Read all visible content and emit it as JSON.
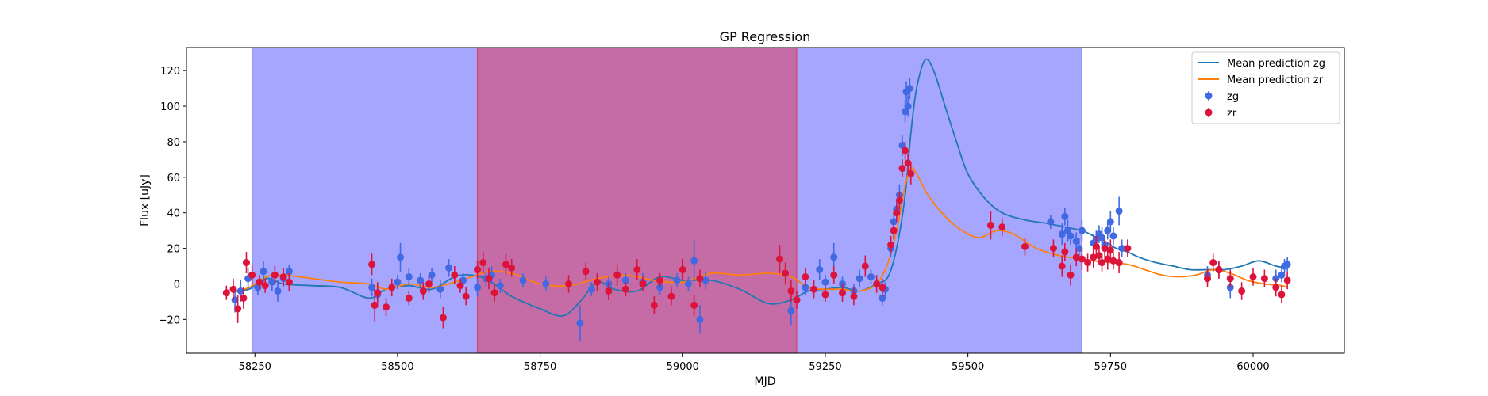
{
  "chart_data": {
    "type": "scatter",
    "title": "GP Regression",
    "xlabel": "MJD",
    "ylabel": "Flux [uJy]",
    "xlim": [
      58130,
      60160
    ],
    "ylim": [
      -39,
      133
    ],
    "xticks": [
      58250,
      58500,
      58750,
      59000,
      59250,
      59500,
      59750,
      60000
    ],
    "yticks": [
      -20,
      0,
      20,
      40,
      60,
      80,
      100,
      120
    ],
    "grid": false,
    "legend_position": "top-right",
    "shaded_regions": [
      {
        "x": [
          58245,
          59700
        ],
        "color": "#0000ff",
        "opacity": 0.35
      },
      {
        "x": [
          58640,
          59200
        ],
        "color": "#ff0000",
        "opacity": 0.35
      }
    ],
    "lines": [
      {
        "name": "Mean prediction zg",
        "color": "#1f77b4",
        "x": [
          58210,
          58240,
          58270,
          58300,
          58350,
          58400,
          58450,
          58480,
          58520,
          58560,
          58600,
          58630,
          58660,
          58700,
          58750,
          58790,
          58820,
          58850,
          58880,
          58920,
          58960,
          59000,
          59050,
          59100,
          59150,
          59190,
          59220,
          59250,
          59280,
          59310,
          59340,
          59360,
          59375,
          59390,
          59400,
          59410,
          59425,
          59440,
          59460,
          59480,
          59500,
          59530,
          59560,
          59600,
          59640,
          59670,
          59700,
          59720,
          59740,
          59760,
          59780,
          59800,
          59830,
          59860,
          59890,
          59920,
          59950,
          59980,
          60010,
          60040,
          60060
        ],
        "y": [
          -4,
          -3,
          3,
          0,
          -1,
          -2,
          -8,
          -3,
          -1,
          -3,
          4,
          5,
          2,
          -7,
          -14,
          -18,
          -10,
          1,
          -3,
          -4,
          4,
          2,
          2,
          -3,
          -11,
          -9,
          -4,
          -3,
          -2,
          -4,
          0,
          4,
          20,
          50,
          85,
          110,
          126,
          120,
          100,
          80,
          62,
          48,
          40,
          36,
          34,
          32,
          30,
          27,
          24,
          20,
          18,
          15,
          12,
          10,
          8,
          8,
          8,
          10,
          13,
          10,
          9
        ]
      },
      {
        "name": "Mean prediction zr",
        "color": "#ff7f0e",
        "x": [
          58210,
          58240,
          58270,
          58300,
          58350,
          58400,
          58450,
          58480,
          58520,
          58560,
          58600,
          58630,
          58660,
          58700,
          58750,
          58800,
          58850,
          58900,
          58950,
          59000,
          59050,
          59100,
          59150,
          59190,
          59220,
          59250,
          59280,
          59310,
          59340,
          59360,
          59375,
          59390,
          59400,
          59410,
          59430,
          59460,
          59490,
          59520,
          59550,
          59580,
          59620,
          59660,
          59700,
          59720,
          59750,
          59780,
          59810,
          59840,
          59870,
          59900,
          59930,
          59960,
          59990,
          60020,
          60050,
          60060
        ],
        "y": [
          -5,
          -2,
          4,
          5,
          3,
          1,
          0,
          -3,
          0,
          -2,
          1,
          4,
          7,
          6,
          0,
          -1,
          3,
          5,
          2,
          1,
          6,
          5,
          6,
          4,
          -2,
          -3,
          -3,
          -4,
          0,
          12,
          30,
          55,
          65,
          62,
          50,
          38,
          30,
          26,
          30,
          28,
          20,
          16,
          14,
          13,
          12,
          11,
          8,
          5,
          4,
          5,
          8,
          6,
          2,
          0,
          -1,
          -2
        ]
      }
    ],
    "series": [
      {
        "name": "zg",
        "color": "#4169e1",
        "points": [
          [
            58215,
            -9,
            7
          ],
          [
            58225,
            -4,
            6
          ],
          [
            58238,
            3,
            6
          ],
          [
            58255,
            -2,
            4
          ],
          [
            58265,
            7,
            6
          ],
          [
            58280,
            1,
            5
          ],
          [
            58290,
            -4,
            6
          ],
          [
            58300,
            3,
            5
          ],
          [
            58310,
            7,
            4
          ],
          [
            58455,
            -2,
            5
          ],
          [
            58465,
            -6,
            5
          ],
          [
            58500,
            1,
            4
          ],
          [
            58505,
            15,
            8
          ],
          [
            58520,
            4,
            5
          ],
          [
            58540,
            2,
            4
          ],
          [
            58560,
            5,
            4
          ],
          [
            58575,
            -3,
            5
          ],
          [
            58590,
            9,
            5
          ],
          [
            58615,
            2,
            4
          ],
          [
            58640,
            -2,
            5
          ],
          [
            58655,
            3,
            4
          ],
          [
            58665,
            5,
            5
          ],
          [
            58680,
            -1,
            4
          ],
          [
            58720,
            2,
            4
          ],
          [
            58760,
            0,
            4
          ],
          [
            58820,
            -22,
            10
          ],
          [
            58840,
            -3,
            4
          ],
          [
            58870,
            0,
            4
          ],
          [
            58900,
            2,
            4
          ],
          [
            58930,
            1,
            5
          ],
          [
            58960,
            -2,
            4
          ],
          [
            58990,
            2,
            4
          ],
          [
            59010,
            0,
            4
          ],
          [
            59020,
            13,
            12
          ],
          [
            59030,
            -20,
            8
          ],
          [
            59040,
            2,
            5
          ],
          [
            59190,
            -15,
            8
          ],
          [
            59215,
            -2,
            4
          ],
          [
            59240,
            8,
            6
          ],
          [
            59250,
            1,
            4
          ],
          [
            59265,
            15,
            8
          ],
          [
            59280,
            0,
            4
          ],
          [
            59300,
            -4,
            4
          ],
          [
            59310,
            3,
            5
          ],
          [
            59330,
            4,
            4
          ],
          [
            59350,
            -8,
            4
          ],
          [
            59355,
            -3,
            4
          ],
          [
            59365,
            20,
            5
          ],
          [
            59370,
            35,
            5
          ],
          [
            59375,
            42,
            5
          ],
          [
            59380,
            50,
            6
          ],
          [
            59385,
            78,
            6
          ],
          [
            59390,
            97,
            6
          ],
          [
            59392,
            108,
            6
          ],
          [
            59395,
            100,
            6
          ],
          [
            59398,
            110,
            6
          ],
          [
            59645,
            35,
            4
          ],
          [
            59665,
            28,
            6
          ],
          [
            59670,
            38,
            5
          ],
          [
            59675,
            30,
            6
          ],
          [
            59680,
            27,
            5
          ],
          [
            59690,
            24,
            5
          ],
          [
            59695,
            20,
            6
          ],
          [
            59700,
            30,
            6
          ],
          [
            59720,
            23,
            5
          ],
          [
            59725,
            25,
            5
          ],
          [
            59730,
            28,
            5
          ],
          [
            59735,
            26,
            6
          ],
          [
            59740,
            22,
            4
          ],
          [
            59745,
            30,
            5
          ],
          [
            59750,
            35,
            6
          ],
          [
            59755,
            27,
            5
          ],
          [
            59765,
            41,
            8
          ],
          [
            59770,
            20,
            5
          ],
          [
            59920,
            5,
            5
          ],
          [
            59940,
            8,
            5
          ],
          [
            59960,
            -2,
            6
          ],
          [
            60040,
            3,
            5
          ],
          [
            60050,
            5,
            4
          ],
          [
            60055,
            10,
            4
          ],
          [
            60060,
            11,
            4
          ]
        ]
      },
      {
        "name": "zr",
        "color": "#dc143c",
        "points": [
          [
            58200,
            -5,
            4
          ],
          [
            58212,
            -3,
            6
          ],
          [
            58220,
            -14,
            8
          ],
          [
            58230,
            -8,
            6
          ],
          [
            58235,
            12,
            6
          ],
          [
            58245,
            5,
            6
          ],
          [
            58258,
            1,
            4
          ],
          [
            58268,
            -1,
            4
          ],
          [
            58285,
            5,
            5
          ],
          [
            58300,
            4,
            5
          ],
          [
            58310,
            1,
            5
          ],
          [
            58455,
            11,
            6
          ],
          [
            58460,
            -12,
            9
          ],
          [
            58465,
            -5,
            6
          ],
          [
            58480,
            -13,
            5
          ],
          [
            58490,
            -2,
            5
          ],
          [
            58520,
            -8,
            4
          ],
          [
            58545,
            -4,
            5
          ],
          [
            58555,
            0,
            5
          ],
          [
            58580,
            -19,
            6
          ],
          [
            58600,
            5,
            5
          ],
          [
            58610,
            -1,
            4
          ],
          [
            58620,
            -7,
            5
          ],
          [
            58640,
            8,
            5
          ],
          [
            58650,
            12,
            6
          ],
          [
            58660,
            3,
            6
          ],
          [
            58670,
            -5,
            5
          ],
          [
            58690,
            11,
            6
          ],
          [
            58700,
            9,
            5
          ],
          [
            58800,
            0,
            5
          ],
          [
            58830,
            7,
            5
          ],
          [
            58850,
            1,
            5
          ],
          [
            58870,
            -4,
            5
          ],
          [
            58885,
            5,
            6
          ],
          [
            58900,
            -3,
            4
          ],
          [
            58920,
            8,
            6
          ],
          [
            58930,
            0,
            4
          ],
          [
            58950,
            -12,
            5
          ],
          [
            58960,
            2,
            4
          ],
          [
            58980,
            -7,
            5
          ],
          [
            59000,
            8,
            6
          ],
          [
            59020,
            -12,
            6
          ],
          [
            59030,
            3,
            5
          ],
          [
            59170,
            14,
            8
          ],
          [
            59180,
            6,
            6
          ],
          [
            59190,
            -4,
            6
          ],
          [
            59200,
            -9,
            5
          ],
          [
            59215,
            4,
            5
          ],
          [
            59230,
            -3,
            5
          ],
          [
            59250,
            -6,
            4
          ],
          [
            59265,
            5,
            5
          ],
          [
            59280,
            -5,
            5
          ],
          [
            59300,
            -7,
            5
          ],
          [
            59320,
            10,
            6
          ],
          [
            59340,
            0,
            5
          ],
          [
            59350,
            -2,
            5
          ],
          [
            59365,
            22,
            5
          ],
          [
            59370,
            30,
            5
          ],
          [
            59375,
            40,
            5
          ],
          [
            59380,
            47,
            5
          ],
          [
            59385,
            65,
            5
          ],
          [
            59390,
            75,
            5
          ],
          [
            59395,
            68,
            5
          ],
          [
            59400,
            62,
            6
          ],
          [
            59540,
            33,
            8
          ],
          [
            59560,
            32,
            5
          ],
          [
            59600,
            21,
            5
          ],
          [
            59650,
            20,
            5
          ],
          [
            59665,
            10,
            6
          ],
          [
            59670,
            18,
            5
          ],
          [
            59680,
            5,
            6
          ],
          [
            59690,
            15,
            5
          ],
          [
            59700,
            14,
            6
          ],
          [
            59710,
            12,
            5
          ],
          [
            59720,
            15,
            6
          ],
          [
            59725,
            21,
            6
          ],
          [
            59730,
            16,
            5
          ],
          [
            59735,
            12,
            5
          ],
          [
            59740,
            20,
            5
          ],
          [
            59745,
            14,
            6
          ],
          [
            59750,
            19,
            6
          ],
          [
            59755,
            13,
            5
          ],
          [
            59765,
            12,
            6
          ],
          [
            59780,
            20,
            5
          ],
          [
            59920,
            3,
            5
          ],
          [
            59930,
            12,
            5
          ],
          [
            59940,
            8,
            5
          ],
          [
            59960,
            3,
            5
          ],
          [
            59980,
            -4,
            5
          ],
          [
            60000,
            4,
            5
          ],
          [
            60020,
            3,
            5
          ],
          [
            60040,
            -2,
            5
          ],
          [
            60050,
            -6,
            5
          ],
          [
            60060,
            2,
            5
          ]
        ]
      }
    ]
  }
}
